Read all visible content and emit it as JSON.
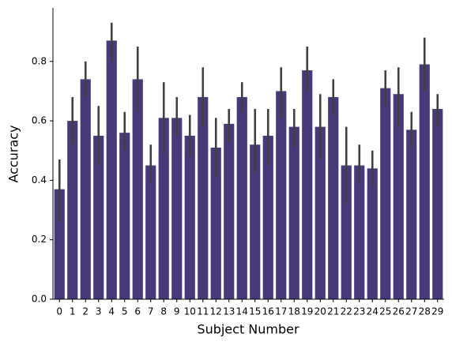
{
  "chart_data": {
    "type": "bar",
    "categories": [
      "0",
      "1",
      "2",
      "3",
      "4",
      "5",
      "6",
      "7",
      "8",
      "9",
      "10",
      "11",
      "12",
      "13",
      "14",
      "15",
      "16",
      "17",
      "18",
      "19",
      "20",
      "21",
      "22",
      "23",
      "24",
      "25",
      "26",
      "27",
      "28",
      "29"
    ],
    "values": [
      0.37,
      0.6,
      0.74,
      0.55,
      0.87,
      0.56,
      0.74,
      0.45,
      0.61,
      0.61,
      0.55,
      0.68,
      0.51,
      0.59,
      0.68,
      0.52,
      0.55,
      0.7,
      0.58,
      0.77,
      0.58,
      0.68,
      0.45,
      0.45,
      0.44,
      0.71,
      0.69,
      0.57,
      0.79,
      0.64
    ],
    "error_low": [
      0.26,
      0.52,
      0.68,
      0.45,
      0.8,
      0.5,
      0.63,
      0.39,
      0.49,
      0.55,
      0.48,
      0.58,
      0.41,
      0.53,
      0.63,
      0.42,
      0.45,
      0.61,
      0.51,
      0.7,
      0.47,
      0.62,
      0.32,
      0.39,
      0.38,
      0.65,
      0.58,
      0.51,
      0.7,
      0.58
    ],
    "error_high": [
      0.47,
      0.68,
      0.8,
      0.65,
      0.93,
      0.63,
      0.85,
      0.52,
      0.73,
      0.68,
      0.62,
      0.78,
      0.61,
      0.64,
      0.73,
      0.64,
      0.64,
      0.78,
      0.64,
      0.85,
      0.69,
      0.74,
      0.58,
      0.52,
      0.5,
      0.77,
      0.78,
      0.63,
      0.88,
      0.69
    ],
    "color": "#483a7a",
    "error_color": "#404040",
    "xlabel": "Subject Number",
    "ylabel": "Accuracy",
    "ylim": [
      0,
      0.98
    ],
    "yticks": [
      {
        "value": 0,
        "label": "0.0"
      },
      0.2,
      0.4,
      0.6,
      0.8
    ]
  }
}
